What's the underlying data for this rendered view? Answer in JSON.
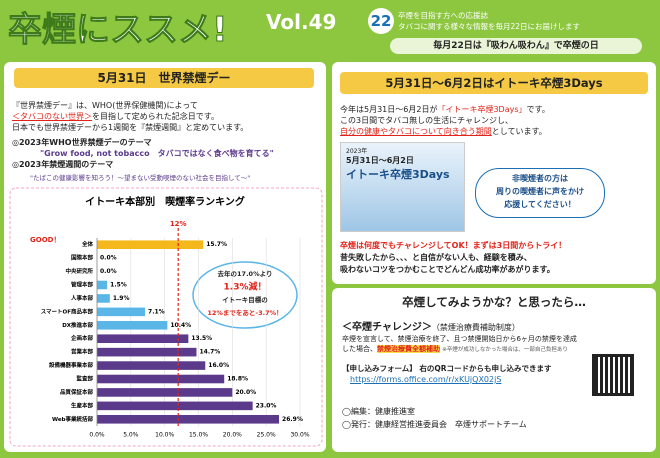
{
  "header": {
    "title": "卒煙にススメ!",
    "vol": "Vol.49",
    "day": "22",
    "desc1": "卒煙を目指す方への応援誌",
    "desc2": "タバコに関する様々な情報を毎月22日にお届けします",
    "tagline": "毎月22日は『吸わん吸わん』で卒煙の日"
  },
  "left": {
    "heading": "5月31日　世界禁煙デー",
    "p1": "『世界禁煙デー』は、WHO(世界保健機関)によって",
    "p2a": "＜タバコのない世界＞",
    "p2b": "を目指して定められた記念日です。",
    "p3": "日本でも世界禁煙デーから1週間を『禁煙週間』と定めています。",
    "theme1": "◎2023年WHO世界禁煙デーのテーマ",
    "theme1_text": "\"Grow food, not tobacco　タバコではなく食べ物を育てる\"",
    "theme2": "◎2023年禁煙週間のテーマ",
    "theme2_text": "\"たばこの健康影響を知ろう！～望まない受動喫煙のない社会を目指して～\""
  },
  "chart_data": {
    "type": "bar",
    "orientation": "horizontal",
    "title": "イトーキ本部別　喫煙率ランキング",
    "good_label": "GOOD！",
    "categories": [
      "全体",
      "国際本部",
      "中央研究所",
      "管理本部",
      "人事本部",
      "スマートOF商品本部",
      "DX推進本部",
      "企画本部",
      "営業本部",
      "設備機器事業本部",
      "監査部",
      "品質保証本部",
      "生産本部",
      "Web事業統括部"
    ],
    "values": [
      15.7,
      0.0,
      0.0,
      1.5,
      1.9,
      7.1,
      10.4,
      13.5,
      14.7,
      16.0,
      18.8,
      20.0,
      23.0,
      26.9
    ],
    "value_labels": [
      "15.7%",
      "0.0%",
      "0.0%",
      "1.5%",
      "1.9%",
      "7.1%",
      "10.4%",
      "13.5%",
      "14.7%",
      "16.0%",
      "18.8%",
      "20.0%",
      "23.0%",
      "26.9%"
    ],
    "colors": [
      "#f5b81c",
      "#5bb6e8",
      "#5bb6e8",
      "#5bb6e8",
      "#5bb6e8",
      "#5bb6e8",
      "#5bb6e8",
      "#5b3a8c",
      "#5b3a8c",
      "#5b3a8c",
      "#5b3a8c",
      "#5b3a8c",
      "#5b3a8c",
      "#5b3a8c"
    ],
    "xlim": [
      0,
      30
    ],
    "xticks": [
      {
        "value": 0,
        "label": "0.0%"
      },
      {
        "value": 5,
        "label": "5.0%"
      },
      {
        "value": 10,
        "label": "10.0%"
      },
      {
        "value": 15,
        "label": "15.0%"
      },
      {
        "value": 20,
        "label": "20.0%"
      },
      {
        "value": 25,
        "label": "25.0%"
      },
      {
        "value": 30,
        "label": "30.0%"
      }
    ],
    "grid": true,
    "target": {
      "value": 12,
      "label": "12%",
      "color": "#e2231a"
    },
    "note": [
      "去年の17.0%より",
      "1.3%減！",
      "イトーキ目標の",
      "12%までをあと-3.7%！"
    ]
  },
  "right_top": {
    "heading": "5月31日～6月2日はイトーキ卒煙3Days",
    "l1a": "今年は5月31日～6月2日が",
    "l1b": "「イトーキ卒煙3Days」",
    "l1c": "です。",
    "l2": "この3日間でタバコ無しの生活にチャレンジし、",
    "l3a": "自分の健康やタバコについて向き合う期間",
    "l3b": "としています。",
    "poster_year": "2023年",
    "poster_date": "5月31日～6月2日",
    "poster_title": "イトーキ卒煙3Days",
    "bubble": [
      "非喫煙者の方は",
      "周りの喫煙者に声をかけ",
      "応援してください！"
    ],
    "b1a": "卒煙は何度でもチャレンジしてOK！",
    "b1b": "まずは3日間からトライ！",
    "b2": "昔失敗したから、、、と自信がない人も、経験を積み、",
    "b3": "吸わないコツをつかむことでどんどん成功率があがります。"
  },
  "right_bottom": {
    "heading": "卒煙してみようかな？と思ったら…",
    "sub_a": "＜卒煙チャレンジ＞",
    "sub_b": "（禁煙治療費補助制度）",
    "l1": "卒煙を宣言して、禁煙治療を終了、且つ禁煙開始日から6ヶ月の禁煙を達成",
    "l2a": "した場合、",
    "l2b": "禁煙治療費全額補助",
    "l2c": "※卒煙が成功しなかった場合は、一部自己負担あり",
    "apply": "【申し込みフォーム】 右のQRコードからも申し込みできます",
    "url": "https://forms.office.com/r/xKUjQX02jS",
    "footer1": "◯編集：健康推進室",
    "footer2": "◯発行：健康経営推進委員会　卒煙サポートチーム"
  }
}
